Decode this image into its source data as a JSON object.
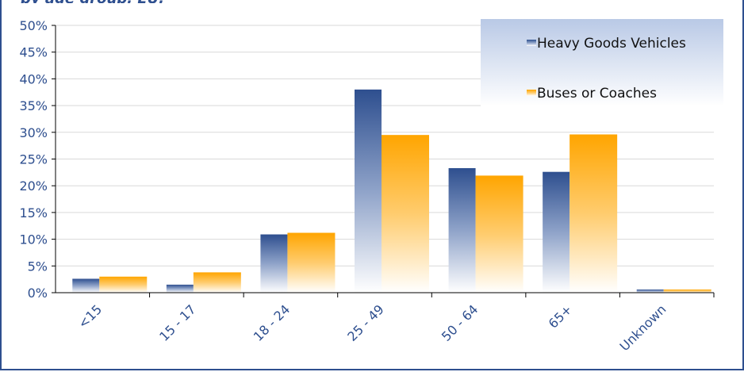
{
  "chart_data": {
    "type": "bar",
    "title": "",
    "xlabel": "",
    "ylabel": "",
    "categories": [
      "<15",
      "15 - 17",
      "18 - 24",
      "25 - 49",
      "50 - 64",
      "65+",
      "Unknown"
    ],
    "series": [
      {
        "name": "Heavy Goods Vehicles",
        "values": [
          2.6,
          1.5,
          10.9,
          38.0,
          23.3,
          22.6,
          0.6
        ],
        "color": "#2e4f8f"
      },
      {
        "name": "Buses or Coaches",
        "values": [
          3.0,
          3.8,
          11.2,
          29.5,
          21.9,
          29.6,
          0.6
        ],
        "color": "#ffa500"
      }
    ],
    "ylim": [
      0,
      50
    ],
    "yticks": [
      "0%",
      "5%",
      "10%",
      "15%",
      "20%",
      "25%",
      "30%",
      "35%",
      "40%",
      "45%",
      "50%"
    ],
    "grid": true,
    "legend_position": "top-right"
  }
}
